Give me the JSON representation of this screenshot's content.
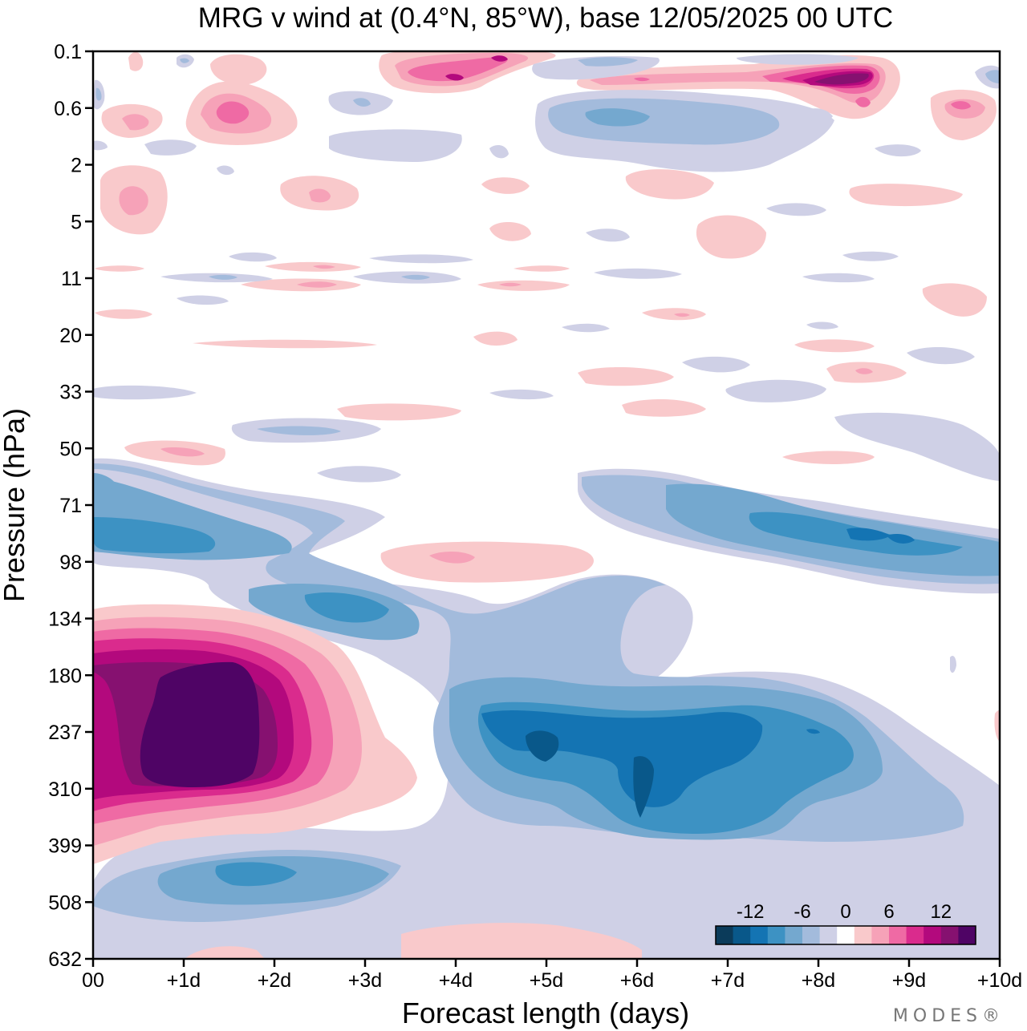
{
  "chart_data": {
    "type": "heatmap",
    "title": "MRG v wind at (0.4°N, 85°W),  base 12/05/2025  00 UTC",
    "xlabel": "Forecast length (days)",
    "ylabel": "Pressure (hPa)",
    "xlim": [
      0,
      10
    ],
    "x_ticks": [
      "00",
      "+1d",
      "+2d",
      "+3d",
      "+4d",
      "+5d",
      "+6d",
      "+7d",
      "+8d",
      "+9d",
      "+10d"
    ],
    "y_ticks": [
      "0.1",
      "0.6",
      "2",
      "5",
      "11",
      "20",
      "33",
      "50",
      "71",
      "98",
      "134",
      "180",
      "237",
      "310",
      "399",
      "508",
      "632"
    ],
    "colorbar": {
      "tick_labels": [
        "-12",
        "-6",
        "0",
        "6",
        "12"
      ],
      "levels": [
        -16,
        -14,
        -12,
        -10,
        -8,
        -6,
        -4,
        -2,
        2,
        4,
        6,
        8,
        10,
        12,
        14,
        16
      ],
      "colors": [
        "#0b3b5a",
        "#09588a",
        "#1474b3",
        "#3d92c3",
        "#74a8cf",
        "#a3bbdc",
        "#cfd0e6",
        "#ffffff",
        "#f9c9cb",
        "#f6a2b8",
        "#ef6aa4",
        "#da2b8d",
        "#b3097d",
        "#861170",
        "#4f0465"
      ]
    },
    "features": [
      {
        "sign": "positive",
        "day": 1.5,
        "pressure_hPa": 237,
        "peak_v": 16
      },
      {
        "sign": "negative",
        "day": 5.0,
        "pressure_hPa": 237,
        "peak_v": -16
      },
      {
        "sign": "negative",
        "day": 6.1,
        "pressure_hPa": 310,
        "peak_v": -14
      },
      {
        "sign": "negative",
        "day": 3.0,
        "pressure_hPa": 134,
        "peak_v": -10
      },
      {
        "sign": "negative",
        "day": 1.0,
        "pressure_hPa": 85,
        "peak_v": -10
      },
      {
        "sign": "negative",
        "day": 8.5,
        "pressure_hPa": 85,
        "peak_v": -10
      },
      {
        "sign": "negative",
        "day": 1.8,
        "pressure_hPa": 460,
        "peak_v": -8
      },
      {
        "sign": "positive",
        "day": 4.0,
        "pressure_hPa": 98,
        "peak_v": 6
      },
      {
        "sign": "positive",
        "day": 8.6,
        "pressure_hPa": 0.25,
        "peak_v": 16
      },
      {
        "sign": "positive",
        "day": 4.3,
        "pressure_hPa": 0.2,
        "peak_v": 12
      },
      {
        "sign": "positive",
        "day": 1.5,
        "pressure_hPa": 0.6,
        "peak_v": 8
      },
      {
        "sign": "negative",
        "day": 6.0,
        "pressure_hPa": 0.7,
        "peak_v": -8
      }
    ]
  },
  "branding": {
    "logo_text": "MODES®"
  }
}
